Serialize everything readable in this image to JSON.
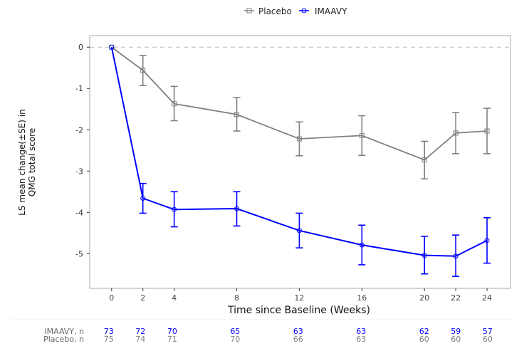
{
  "chart_data": {
    "type": "line",
    "title": "",
    "xlabel": "Time since Baseline (Weeks)",
    "ylabel": [
      "LS mean change(±SE) in",
      "QMG total score"
    ],
    "x": [
      0,
      2,
      4,
      8,
      12,
      16,
      20,
      22,
      24
    ],
    "x_ticks": [
      "0",
      "2",
      "4",
      "8",
      "12",
      "16",
      "20",
      "22",
      "24"
    ],
    "y_ticks": [
      "0",
      "-1",
      "-2",
      "-3",
      "-4",
      "-5"
    ],
    "y_tick_values": [
      0,
      -1,
      -2,
      -3,
      -4,
      -5
    ],
    "xlim": [
      -1.4,
      25.5
    ],
    "ylim": [
      -5.84,
      0.28
    ],
    "grid": false,
    "reference_line": 0,
    "legend_position": "top",
    "series": [
      {
        "name": "Placebo",
        "color": "#808080",
        "marker": "square",
        "values": [
          0,
          -0.56,
          -1.37,
          -1.63,
          -2.22,
          -2.14,
          -2.73,
          -2.08,
          -2.03
        ],
        "err_upper": [
          0,
          -0.2,
          -0.95,
          -1.22,
          -1.81,
          -1.66,
          -2.28,
          -1.58,
          -1.48
        ],
        "err_lower": [
          0,
          -0.93,
          -1.78,
          -2.03,
          -2.63,
          -2.62,
          -3.19,
          -2.58,
          -2.58
        ]
      },
      {
        "name": "IMAAVY",
        "color": "#0000ff",
        "marker": "circle",
        "values": [
          0,
          -3.66,
          -3.93,
          -3.91,
          -4.44,
          -4.79,
          -5.04,
          -5.06,
          -4.68
        ],
        "err_upper": [
          0,
          -3.3,
          -3.5,
          -3.5,
          -4.02,
          -4.31,
          -4.58,
          -4.55,
          -4.13
        ],
        "err_lower": [
          0,
          -4.02,
          -4.35,
          -4.33,
          -4.86,
          -5.27,
          -5.49,
          -5.55,
          -5.23
        ]
      }
    ],
    "risk_table": [
      {
        "label": "IMAAVY, n",
        "color": "#0000ff",
        "values": [
          "73",
          "72",
          "70",
          "65",
          "63",
          "63",
          "62",
          "59",
          "57"
        ]
      },
      {
        "label": "Placebo, n",
        "color": "#808080",
        "values": [
          "75",
          "74",
          "71",
          "70",
          "66",
          "63",
          "60",
          "60",
          "60"
        ]
      }
    ]
  }
}
